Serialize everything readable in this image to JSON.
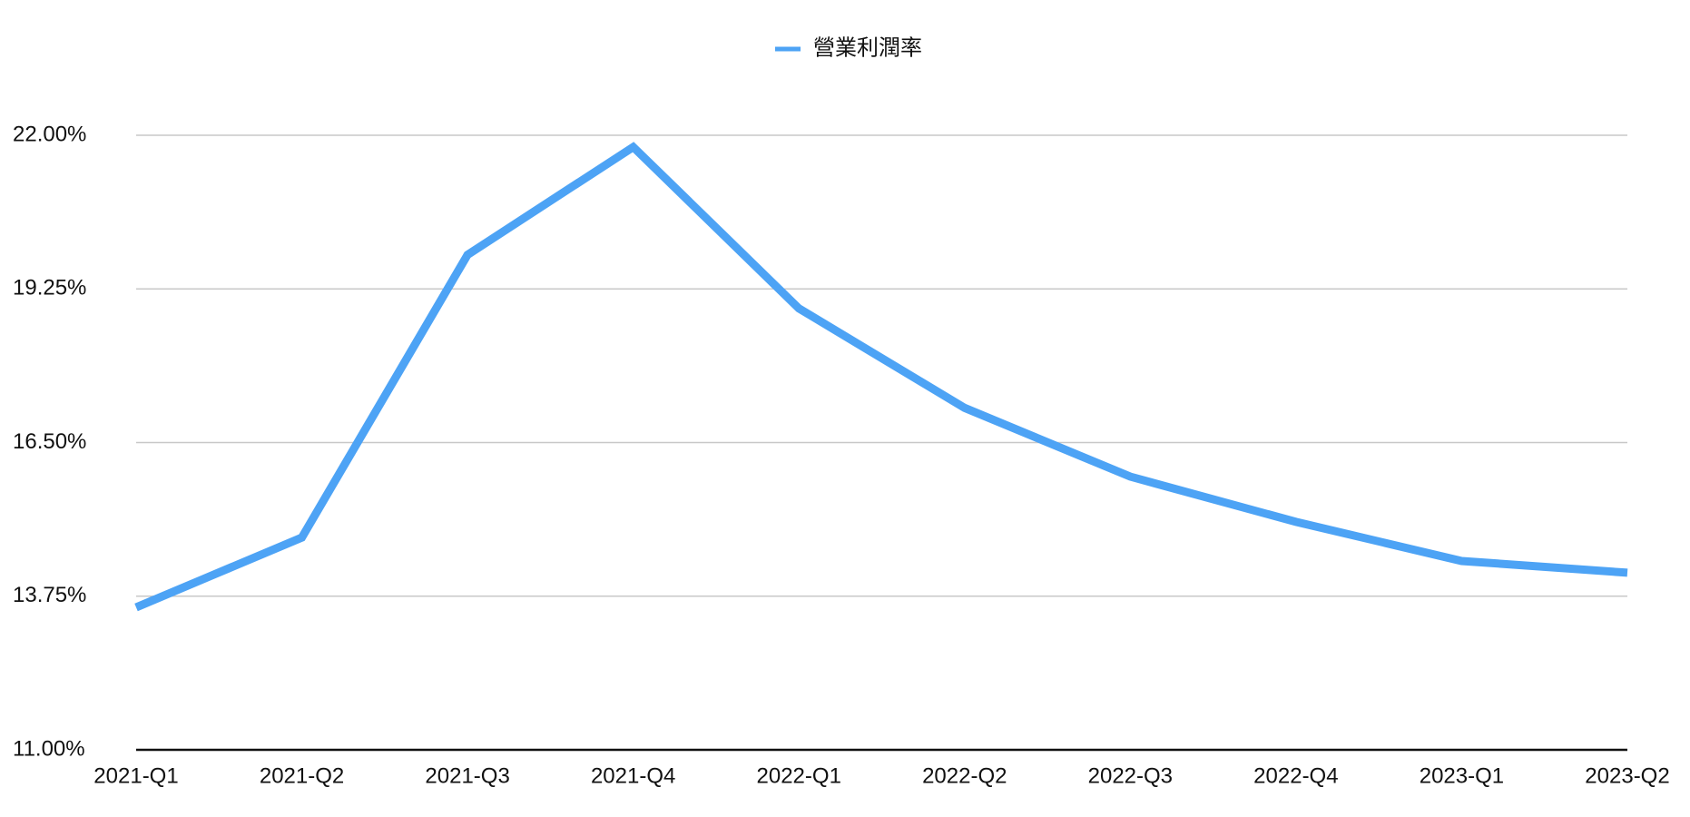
{
  "chart_data": {
    "type": "line",
    "categories": [
      "2021-Q1",
      "2021-Q2",
      "2021-Q3",
      "2021-Q4",
      "2022-Q1",
      "2022-Q2",
      "2022-Q3",
      "2022-Q4",
      "2023-Q1",
      "2023-Q2"
    ],
    "series": [
      {
        "name": "營業利潤率",
        "color": "#4da3f5",
        "values": [
          13.55,
          14.8,
          19.86,
          21.79,
          18.9,
          17.12,
          15.89,
          15.08,
          14.38,
          14.17
        ]
      }
    ],
    "ylim": [
      11,
      22
    ],
    "yticks": [
      {
        "value": 11,
        "label": "11.00%"
      },
      {
        "value": 13.75,
        "label": "13.75%"
      },
      {
        "value": 16.5,
        "label": "16.50%"
      },
      {
        "value": 19.25,
        "label": "19.25%"
      },
      {
        "value": 22,
        "label": "22.00%"
      }
    ],
    "grid": true,
    "legend": "top"
  }
}
